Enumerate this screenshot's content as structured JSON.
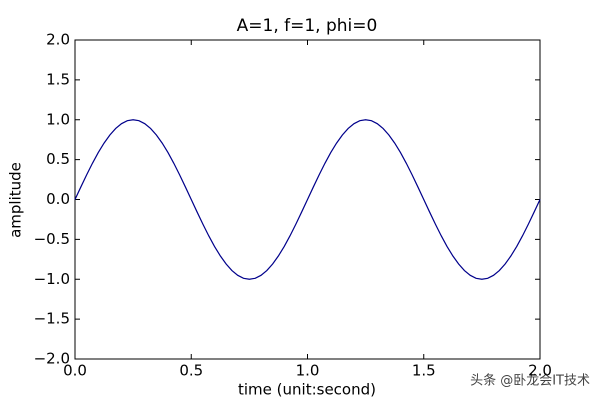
{
  "chart_data": {
    "type": "line",
    "title": "A=1, f=1, phi=0",
    "x_label": "time (unit:second)",
    "y_label": "amplitude",
    "watermark": "头条 @卧龙会IT技术",
    "x": [
      0,
      0.025,
      0.05,
      0.075,
      0.1,
      0.125,
      0.15,
      0.175,
      0.2,
      0.225,
      0.25,
      0.275,
      0.3,
      0.325,
      0.35,
      0.375,
      0.4,
      0.425,
      0.45,
      0.475,
      0.5,
      0.525,
      0.55,
      0.575,
      0.6,
      0.625,
      0.65,
      0.675,
      0.7,
      0.725,
      0.75,
      0.775,
      0.8,
      0.825,
      0.85,
      0.875,
      0.9,
      0.925,
      0.95,
      0.975,
      1,
      1.025,
      1.05,
      1.075,
      1.1,
      1.125,
      1.15,
      1.175,
      1.2,
      1.225,
      1.25,
      1.275,
      1.3,
      1.325,
      1.35,
      1.375,
      1.4,
      1.425,
      1.45,
      1.475,
      1.5,
      1.525,
      1.55,
      1.575,
      1.6,
      1.625,
      1.65,
      1.675,
      1.7,
      1.725,
      1.75,
      1.775,
      1.8,
      1.825,
      1.85,
      1.875,
      1.9,
      1.925,
      1.95,
      1.975,
      2
    ],
    "series": [
      {
        "name": "amplitude",
        "color": "#00008b",
        "values": [
          0,
          0.156,
          0.309,
          0.454,
          0.588,
          0.707,
          0.809,
          0.891,
          0.951,
          0.988,
          1,
          0.988,
          0.951,
          0.891,
          0.809,
          0.707,
          0.588,
          0.454,
          0.309,
          0.156,
          0,
          -0.156,
          -0.309,
          -0.454,
          -0.588,
          -0.707,
          -0.809,
          -0.891,
          -0.951,
          -0.988,
          -1,
          -0.988,
          -0.951,
          -0.891,
          -0.809,
          -0.707,
          -0.588,
          -0.454,
          -0.309,
          -0.156,
          0,
          0.156,
          0.309,
          0.454,
          0.588,
          0.707,
          0.809,
          0.891,
          0.951,
          0.988,
          1,
          0.988,
          0.951,
          0.891,
          0.809,
          0.707,
          0.588,
          0.454,
          0.309,
          0.156,
          0,
          -0.156,
          -0.309,
          -0.454,
          -0.588,
          -0.707,
          -0.809,
          -0.891,
          -0.951,
          -0.988,
          -1,
          -0.988,
          -0.951,
          -0.891,
          -0.809,
          -0.707,
          -0.588,
          -0.454,
          -0.309,
          -0.156,
          0
        ]
      }
    ],
    "xlim": [
      0,
      2
    ],
    "xticks": [
      {
        "value": 0,
        "label": "0.0"
      },
      {
        "value": 0.5,
        "label": "0.5"
      },
      {
        "value": 1,
        "label": "1.0"
      },
      {
        "value": 1.5,
        "label": "1.5"
      },
      {
        "value": 2,
        "label": "2.0"
      }
    ],
    "ylim": [
      -2,
      2
    ],
    "yticks": [
      {
        "value": -2,
        "label": "−2.0"
      },
      {
        "value": -1.5,
        "label": "−1.5"
      },
      {
        "value": -1,
        "label": "−1.0"
      },
      {
        "value": -0.5,
        "label": "−0.5"
      },
      {
        "value": 0,
        "label": "0.0"
      },
      {
        "value": 0.5,
        "label": "0.5"
      },
      {
        "value": 1,
        "label": "1.0"
      },
      {
        "value": 1.5,
        "label": "1.5"
      },
      {
        "value": 2,
        "label": "2.0"
      }
    ],
    "grid": false
  }
}
